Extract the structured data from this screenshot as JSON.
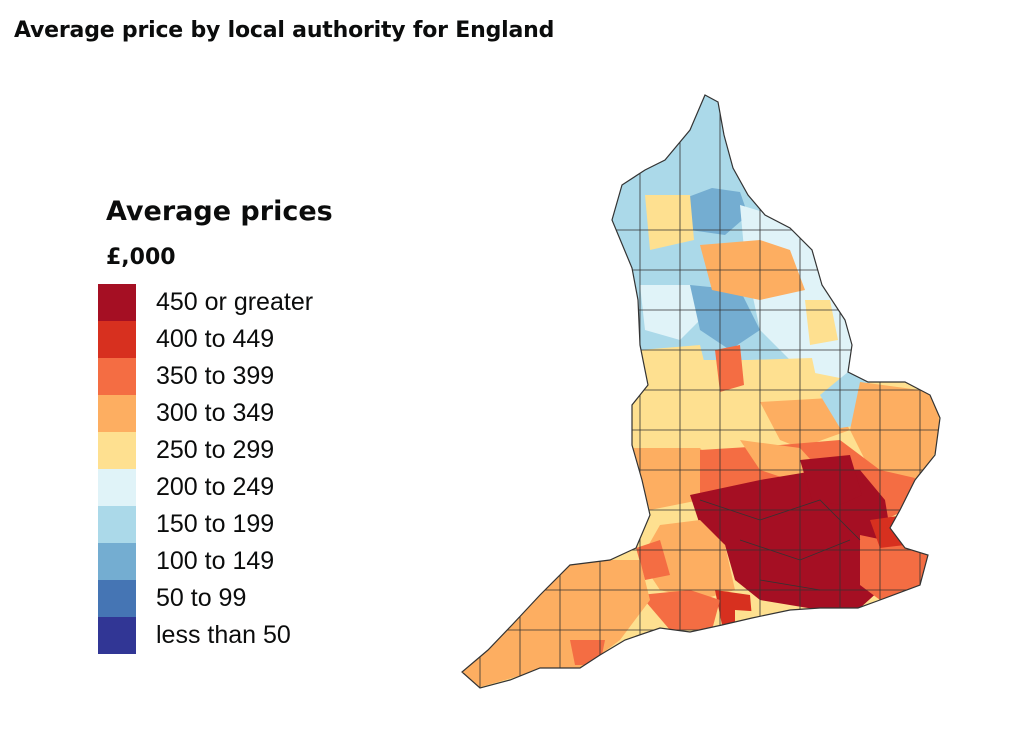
{
  "title": "Average price by local authority for England",
  "legend": {
    "title": "Average prices",
    "unit": "£,000",
    "items": [
      {
        "label": "450 or greater",
        "color": "#a50f23"
      },
      {
        "label": "400 to 449",
        "color": "#d7301f"
      },
      {
        "label": "350 to 399",
        "color": "#f46d43"
      },
      {
        "label": "300 to 349",
        "color": "#fdae61"
      },
      {
        "label": "250 to 299",
        "color": "#fee090"
      },
      {
        "label": "200 to 249",
        "color": "#e0f3f8"
      },
      {
        "label": "150 to 199",
        "color": "#abd9e9"
      },
      {
        "label": "100 to 149",
        "color": "#74add1"
      },
      {
        "label": "50 to 99",
        "color": "#4575b4"
      },
      {
        "label": "less than 50",
        "color": "#313695"
      }
    ]
  },
  "map": {
    "region": "England",
    "outline_color": "#333333"
  }
}
